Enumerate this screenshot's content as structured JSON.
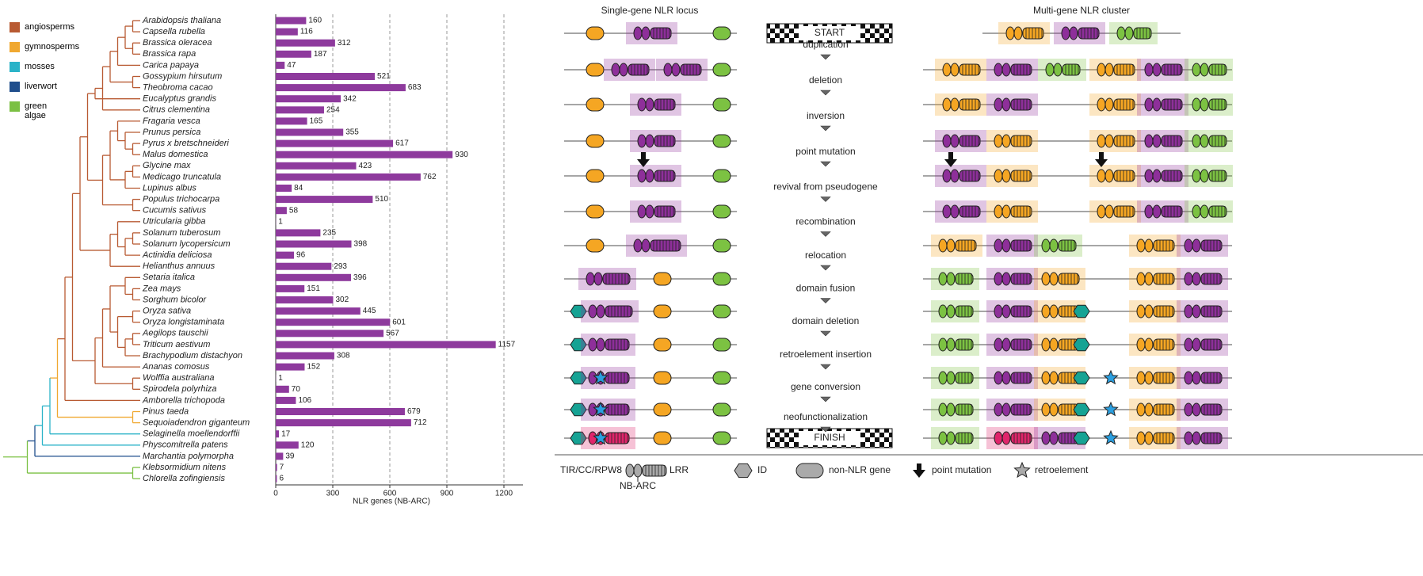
{
  "chart_data": {
    "type": "bar",
    "orientation": "horizontal",
    "categories": [
      "Arabidopsis thaliana",
      "Capsella rubella",
      "Brassica oleracea",
      "Brassica rapa",
      "Carica papaya",
      "Gossypium hirsutum",
      "Theobroma cacao",
      "Eucalyptus grandis",
      "Citrus clementina",
      "Fragaria vesca",
      "Prunus persica",
      "Pyrus x bretschneideri",
      "Malus domestica",
      "Glycine max",
      "Medicago truncatula",
      "Lupinus albus",
      "Populus trichocarpa",
      "Cucumis sativus",
      "Utricularia gibba",
      "Solanum tuberosum",
      "Solanum lycopersicum",
      "Actinidia deliciosa",
      "Helianthus annuus",
      "Setaria italica",
      "Zea mays",
      "Sorghum bicolor",
      "Oryza sativa",
      "Oryza longistaminata",
      "Aegilops tauschii",
      "Triticum aestivum",
      "Brachypodium distachyon",
      "Ananas comosus",
      "Wolffia australiana",
      "Spirodela polyrhiza",
      "Amborella trichopoda",
      "Pinus taeda",
      "Sequoiadendron giganteum",
      "Selaginella moellendorffii",
      "Physcomitrella patens",
      "Marchantia polymorpha",
      "Klebsormidium nitens",
      "Chlorella zofingiensis"
    ],
    "values": [
      160,
      116,
      312,
      187,
      47,
      521,
      683,
      342,
      254,
      165,
      355,
      617,
      930,
      423,
      762,
      84,
      510,
      58,
      1,
      235,
      398,
      96,
      293,
      396,
      151,
      302,
      445,
      601,
      567,
      1157,
      308,
      152,
      1,
      70,
      106,
      679,
      712,
      17,
      120,
      39,
      7,
      6
    ],
    "color": "#8e3a9d",
    "xlim": [
      0,
      1300
    ],
    "xticks": [
      0,
      300,
      600,
      900,
      1200
    ],
    "xlabel": "NLR genes (NB-ARC)",
    "grid": true
  },
  "clade_legend": {
    "items": [
      {
        "name": "angiosperms",
        "color": "#b85a32"
      },
      {
        "name": "gymnosperms",
        "color": "#f0a830"
      },
      {
        "name": "mosses",
        "color": "#2bb3c8"
      },
      {
        "name": "liverwort",
        "color": "#1f4e8c"
      },
      {
        "name": "green algae",
        "color": "#7bc043"
      }
    ]
  },
  "diagram": {
    "left_title": "Single-gene NLR locus",
    "right_title": "Multi-gene NLR cluster",
    "start": "START",
    "finish": "FINISH",
    "steps": [
      "duplication",
      "deletion",
      "inversion",
      "point mutation",
      "revival from pseudogene",
      "recombination",
      "relocation",
      "domain fusion",
      "domain deletion",
      "retroelement insertion",
      "gene conversion",
      "neofunctionalization"
    ],
    "legend": {
      "tir": "TIR/CC/RPW8",
      "lrr": "LRR",
      "nbarc": "NB-ARC",
      "id": "ID",
      "non_nlr": "non-NLR gene",
      "point_mutation": "point mutation",
      "retroelement": "retroelement"
    }
  }
}
